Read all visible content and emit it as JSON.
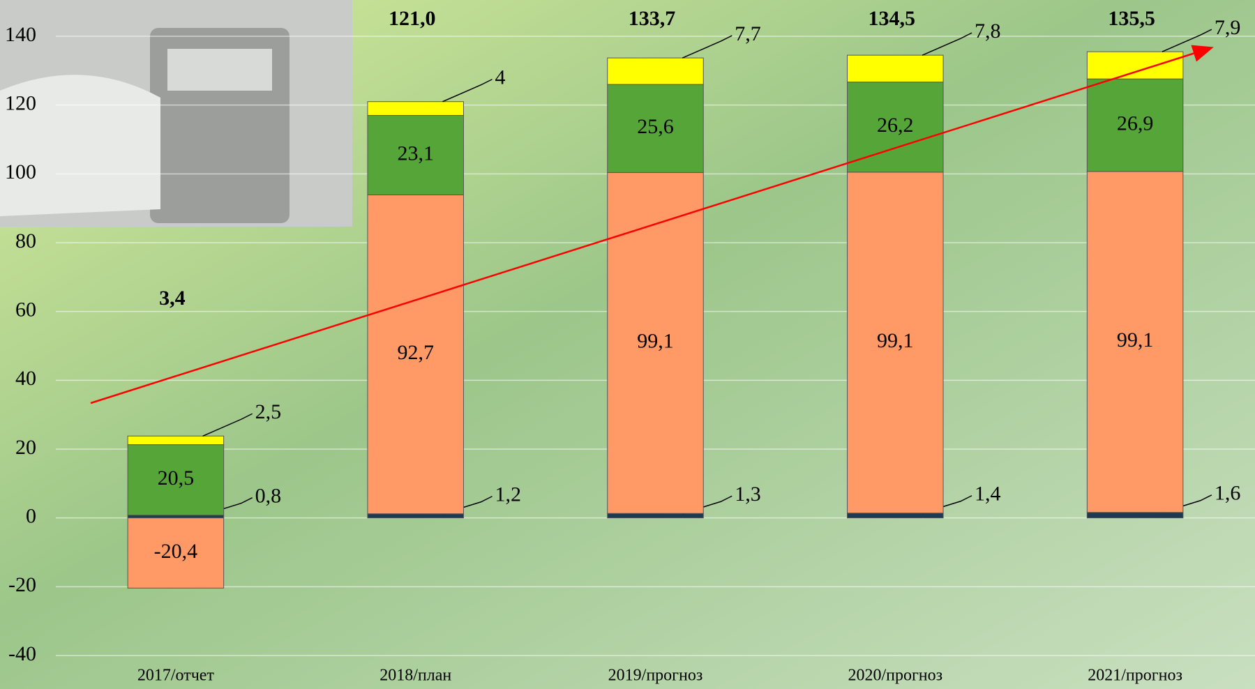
{
  "chart_data": {
    "type": "stacked_bar",
    "categories": [
      "2017/отчет",
      "2018/план",
      "2019/прогноз",
      "2020/прогноз",
      "2021/прогноз"
    ],
    "series": [
      {
        "color": "#1c3a52",
        "values": [
          0.8,
          1.2,
          1.3,
          1.4,
          1.6
        ],
        "value_labels": [
          "0,8",
          "1,2",
          "1,3",
          "1,4",
          "1,6"
        ]
      },
      {
        "color": "#ff9966",
        "values": [
          -20.4,
          92.7,
          99.1,
          99.1,
          99.1
        ],
        "value_labels": [
          "-20,4",
          "92,7",
          "99,1",
          "99,1",
          "99,1"
        ]
      },
      {
        "color": "#55a538",
        "values": [
          20.5,
          23.1,
          25.6,
          26.2,
          26.9
        ],
        "value_labels": [
          "20,5",
          "23,1",
          "25,6",
          "26,2",
          "26,9"
        ]
      },
      {
        "color": "#ffff00",
        "values": [
          2.5,
          4,
          7.7,
          7.8,
          7.9
        ],
        "value_labels": [
          "2,5",
          "4",
          "7,7",
          "7,8",
          "7,9"
        ]
      }
    ],
    "totals": [
      3.4,
      121.0,
      133.7,
      134.5,
      135.5
    ],
    "total_labels": [
      "3,4",
      "121,0",
      "133,7",
      "134,5",
      "135,5"
    ],
    "ylim": [
      -40,
      140
    ],
    "yticks": [
      -40,
      -20,
      0,
      20,
      40,
      60,
      80,
      100,
      120,
      140
    ],
    "grid": true
  }
}
